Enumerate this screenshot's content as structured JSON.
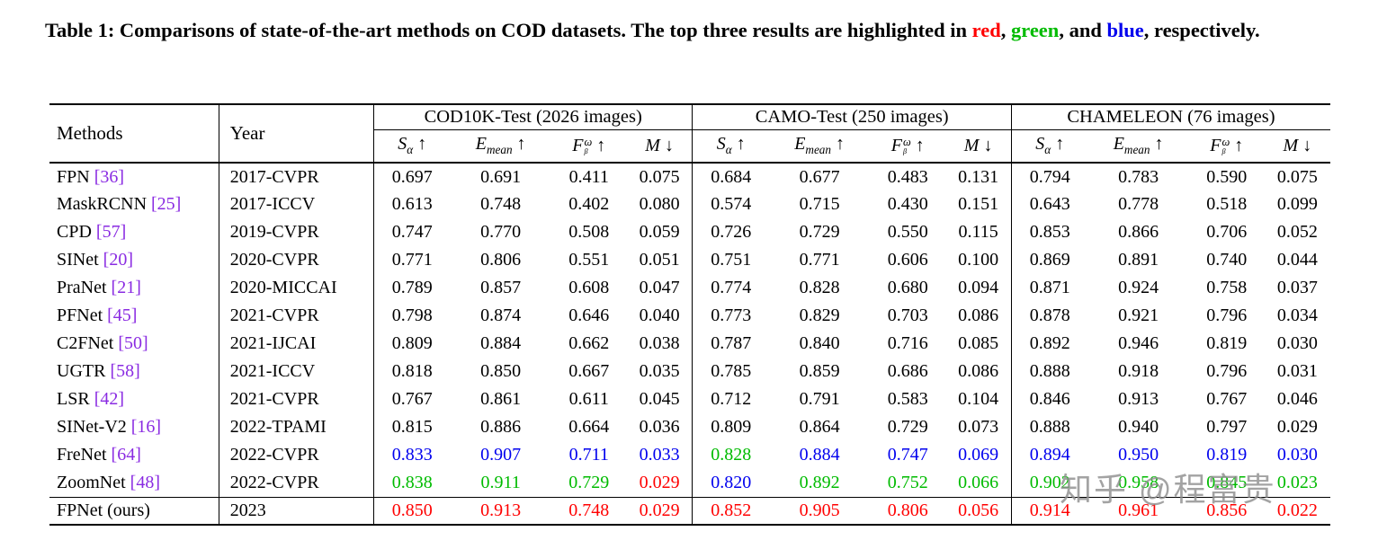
{
  "caption": {
    "prefix": "Table 1: Comparisons of state-of-the-art methods on COD datasets. The top three results are highlighted in ",
    "red_word": "red",
    "sep1": ", ",
    "green_word": "green",
    "sep2": ", and ",
    "blue_word": "blue",
    "suffix": ", respectively."
  },
  "colors": {
    "red": "#ff0000",
    "green": "#00bb00",
    "blue": "#0000ee",
    "citation": "#8a2be2",
    "watermark": "#8f8f8f"
  },
  "watermark": {
    "text": "知乎 @程富贵"
  },
  "table": {
    "header": {
      "methods": "Methods",
      "year": "Year",
      "groups": [
        {
          "label": "COD10K-Test (2026 images)"
        },
        {
          "label": "CAMO-Test (250 images)"
        },
        {
          "label": "CHAMELEON (76 images)"
        }
      ],
      "metrics": [
        {
          "key": "s-alpha",
          "letter": "S",
          "sub": "α",
          "sup": "",
          "arrow": "↑"
        },
        {
          "key": "e-mean",
          "letter": "E",
          "sub": "mean",
          "sup": "",
          "arrow": "↑"
        },
        {
          "key": "f-beta-omega",
          "letter": "F",
          "sub": "β",
          "sup": "ω",
          "arrow": "↑"
        },
        {
          "key": "m",
          "letter": "M",
          "sub": "",
          "sup": "",
          "arrow": "↓"
        }
      ]
    },
    "rows": [
      {
        "method": "FPN",
        "cite": "[36]",
        "year": "2017-CVPR",
        "ours": false,
        "values": [
          "0.697",
          "0.691",
          "0.411",
          "0.075",
          "0.684",
          "0.677",
          "0.483",
          "0.131",
          "0.794",
          "0.783",
          "0.590",
          "0.075"
        ],
        "colors": [
          "",
          "",
          "",
          "",
          "",
          "",
          "",
          "",
          "",
          "",
          "",
          ""
        ]
      },
      {
        "method": "MaskRCNN",
        "cite": "[25]",
        "year": "2017-ICCV",
        "ours": false,
        "values": [
          "0.613",
          "0.748",
          "0.402",
          "0.080",
          "0.574",
          "0.715",
          "0.430",
          "0.151",
          "0.643",
          "0.778",
          "0.518",
          "0.099"
        ],
        "colors": [
          "",
          "",
          "",
          "",
          "",
          "",
          "",
          "",
          "",
          "",
          "",
          ""
        ]
      },
      {
        "method": "CPD",
        "cite": "[57]",
        "year": "2019-CVPR",
        "ours": false,
        "values": [
          "0.747",
          "0.770",
          "0.508",
          "0.059",
          "0.726",
          "0.729",
          "0.550",
          "0.115",
          "0.853",
          "0.866",
          "0.706",
          "0.052"
        ],
        "colors": [
          "",
          "",
          "",
          "",
          "",
          "",
          "",
          "",
          "",
          "",
          "",
          ""
        ]
      },
      {
        "method": "SINet",
        "cite": "[20]",
        "year": "2020-CVPR",
        "ours": false,
        "values": [
          "0.771",
          "0.806",
          "0.551",
          "0.051",
          "0.751",
          "0.771",
          "0.606",
          "0.100",
          "0.869",
          "0.891",
          "0.740",
          "0.044"
        ],
        "colors": [
          "",
          "",
          "",
          "",
          "",
          "",
          "",
          "",
          "",
          "",
          "",
          ""
        ]
      },
      {
        "method": "PraNet",
        "cite": "[21]",
        "year": "2020-MICCAI",
        "ours": false,
        "values": [
          "0.789",
          "0.857",
          "0.608",
          "0.047",
          "0.774",
          "0.828",
          "0.680",
          "0.094",
          "0.871",
          "0.924",
          "0.758",
          "0.037"
        ],
        "colors": [
          "",
          "",
          "",
          "",
          "",
          "",
          "",
          "",
          "",
          "",
          "",
          ""
        ]
      },
      {
        "method": "PFNet",
        "cite": "[45]",
        "year": "2021-CVPR",
        "ours": false,
        "values": [
          "0.798",
          "0.874",
          "0.646",
          "0.040",
          "0.773",
          "0.829",
          "0.703",
          "0.086",
          "0.878",
          "0.921",
          "0.796",
          "0.034"
        ],
        "colors": [
          "",
          "",
          "",
          "",
          "",
          "",
          "",
          "",
          "",
          "",
          "",
          ""
        ]
      },
      {
        "method": "C2FNet",
        "cite": "[50]",
        "year": "2021-IJCAI",
        "ours": false,
        "values": [
          "0.809",
          "0.884",
          "0.662",
          "0.038",
          "0.787",
          "0.840",
          "0.716",
          "0.085",
          "0.892",
          "0.946",
          "0.819",
          "0.030"
        ],
        "colors": [
          "",
          "",
          "",
          "",
          "",
          "",
          "",
          "",
          "",
          "",
          "",
          ""
        ]
      },
      {
        "method": "UGTR",
        "cite": "[58]",
        "year": "2021-ICCV",
        "ours": false,
        "values": [
          "0.818",
          "0.850",
          "0.667",
          "0.035",
          "0.785",
          "0.859",
          "0.686",
          "0.086",
          "0.888",
          "0.918",
          "0.796",
          "0.031"
        ],
        "colors": [
          "",
          "",
          "",
          "",
          "",
          "",
          "",
          "",
          "",
          "",
          "",
          ""
        ]
      },
      {
        "method": "LSR",
        "cite": "[42]",
        "year": "2021-CVPR",
        "ours": false,
        "values": [
          "0.767",
          "0.861",
          "0.611",
          "0.045",
          "0.712",
          "0.791",
          "0.583",
          "0.104",
          "0.846",
          "0.913",
          "0.767",
          "0.046"
        ],
        "colors": [
          "",
          "",
          "",
          "",
          "",
          "",
          "",
          "",
          "",
          "",
          "",
          ""
        ]
      },
      {
        "method": "SINet-V2",
        "cite": "[16]",
        "year": "2022-TPAMI",
        "ours": false,
        "values": [
          "0.815",
          "0.886",
          "0.664",
          "0.036",
          "0.809",
          "0.864",
          "0.729",
          "0.073",
          "0.888",
          "0.940",
          "0.797",
          "0.029"
        ],
        "colors": [
          "",
          "",
          "",
          "",
          "",
          "",
          "",
          "",
          "",
          "",
          "",
          ""
        ]
      },
      {
        "method": "FreNet",
        "cite": "[64]",
        "year": "2022-CVPR",
        "ours": false,
        "values": [
          "0.833",
          "0.907",
          "0.711",
          "0.033",
          "0.828",
          "0.884",
          "0.747",
          "0.069",
          "0.894",
          "0.950",
          "0.819",
          "0.030"
        ],
        "colors": [
          "b",
          "b",
          "b",
          "b",
          "g",
          "b",
          "b",
          "b",
          "b",
          "b",
          "b",
          "b"
        ]
      },
      {
        "method": "ZoomNet",
        "cite": "[48]",
        "year": "2022-CVPR",
        "ours": false,
        "values": [
          "0.838",
          "0.911",
          "0.729",
          "0.029",
          "0.820",
          "0.892",
          "0.752",
          "0.066",
          "0.902",
          "0.958",
          "0.845",
          "0.023"
        ],
        "colors": [
          "g",
          "g",
          "g",
          "r",
          "b",
          "g",
          "g",
          "g",
          "g",
          "g",
          "g",
          "g"
        ]
      },
      {
        "method": "FPNet (ours)",
        "cite": "",
        "year": "2023",
        "ours": true,
        "values": [
          "0.850",
          "0.913",
          "0.748",
          "0.029",
          "0.852",
          "0.905",
          "0.806",
          "0.056",
          "0.914",
          "0.961",
          "0.856",
          "0.022"
        ],
        "colors": [
          "r",
          "r",
          "r",
          "r",
          "r",
          "r",
          "r",
          "r",
          "r",
          "r",
          "r",
          "r"
        ]
      }
    ]
  }
}
